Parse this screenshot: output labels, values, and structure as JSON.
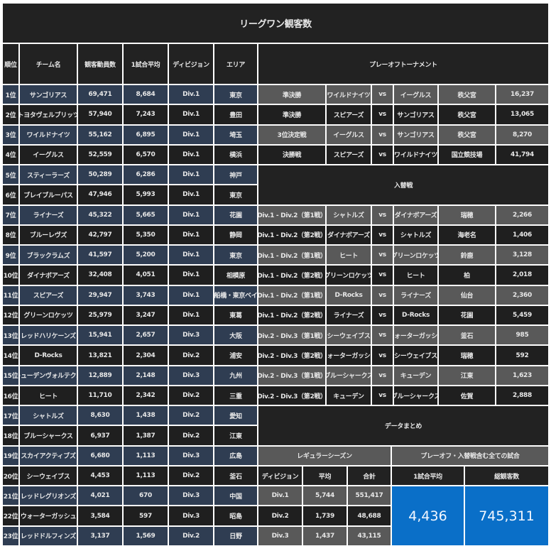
{
  "title": "リーグワン観客数",
  "headers": {
    "rank": "順位",
    "team": "チーム名",
    "attendance": "観客動員数",
    "average": "1試合平均",
    "division": "ディビジョン",
    "area": "エリア",
    "playoff": "プレーオフトーナメント"
  },
  "standings": [
    {
      "rank": "1位",
      "team": "サンゴリアス",
      "attendance": "69,471",
      "average": "8,684",
      "division": "Div.1",
      "area": "東京"
    },
    {
      "rank": "2位",
      "team": "トヨタヴェルブリッツ",
      "attendance": "57,940",
      "average": "7,243",
      "division": "Div.1",
      "area": "豊田"
    },
    {
      "rank": "3位",
      "team": "ワイルドナイツ",
      "attendance": "55,162",
      "average": "6,895",
      "division": "Div.1",
      "area": "埼玉"
    },
    {
      "rank": "4位",
      "team": "イーグルス",
      "attendance": "52,559",
      "average": "6,570",
      "division": "Div.1",
      "area": "横浜"
    },
    {
      "rank": "5位",
      "team": "スティーラーズ",
      "attendance": "50,289",
      "average": "6,286",
      "division": "Div.1",
      "area": "神戸"
    },
    {
      "rank": "6位",
      "team": "ブレイブルーパス",
      "attendance": "47,946",
      "average": "5,993",
      "division": "Div.1",
      "area": "東京"
    },
    {
      "rank": "7位",
      "team": "ライナーズ",
      "attendance": "45,322",
      "average": "5,665",
      "division": "Div.1",
      "area": "花園"
    },
    {
      "rank": "8位",
      "team": "ブルーレヴズ",
      "attendance": "42,797",
      "average": "5,350",
      "division": "Div.1",
      "area": "静岡"
    },
    {
      "rank": "9位",
      "team": "ブラックラムズ",
      "attendance": "41,597",
      "average": "5,200",
      "division": "Div.1",
      "area": "東京"
    },
    {
      "rank": "10位",
      "team": "ダイナボアーズ",
      "attendance": "32,408",
      "average": "4,051",
      "division": "Div.1",
      "area": "相模原"
    },
    {
      "rank": "11位",
      "team": "スピアーズ",
      "attendance": "29,947",
      "average": "3,743",
      "division": "Div.1",
      "area": "船橋・東京ベイ"
    },
    {
      "rank": "12位",
      "team": "グリーンロケッツ",
      "attendance": "25,979",
      "average": "3,247",
      "division": "Div.1",
      "area": "東葛"
    },
    {
      "rank": "13位",
      "team": "レッドハリケーンズ",
      "attendance": "15,941",
      "average": "2,657",
      "division": "Div.3",
      "area": "大阪"
    },
    {
      "rank": "14位",
      "team": "D-Rocks",
      "attendance": "13,821",
      "average": "2,304",
      "division": "Div.2",
      "area": "浦安"
    },
    {
      "rank": "15位",
      "team": "キューデンヴォルテクス",
      "attendance": "12,889",
      "average": "2,148",
      "division": "Div.3",
      "area": "九州"
    },
    {
      "rank": "16位",
      "team": "ヒート",
      "attendance": "11,710",
      "average": "2,342",
      "division": "Div.2",
      "area": "三重"
    },
    {
      "rank": "17位",
      "team": "シャトルズ",
      "attendance": "8,630",
      "average": "1,438",
      "division": "Div.2",
      "area": "愛知"
    },
    {
      "rank": "18位",
      "team": "ブルーシャークス",
      "attendance": "6,937",
      "average": "1,387",
      "division": "Div.2",
      "area": "江東"
    },
    {
      "rank": "19位",
      "team": "スカイアクティブズ",
      "attendance": "6,680",
      "average": "1,113",
      "division": "Div.3",
      "area": "広島"
    },
    {
      "rank": "20位",
      "team": "シーウェイブス",
      "attendance": "4,453",
      "average": "1,113",
      "division": "Div.2",
      "area": "釜石"
    },
    {
      "rank": "21位",
      "team": "レッドレグリオンズ",
      "attendance": "4,021",
      "average": "670",
      "division": "Div.3",
      "area": "中国"
    },
    {
      "rank": "22位",
      "team": "ウォーターガッシュ",
      "attendance": "3,584",
      "average": "597",
      "division": "Div.3",
      "area": "昭島"
    },
    {
      "rank": "23位",
      "team": "レッドドルフィンズ",
      "attendance": "3,137",
      "average": "1,569",
      "division": "Div.2",
      "area": "日野"
    }
  ],
  "playoff_matches": [
    {
      "stage": "準決勝",
      "home": "ワイルドナイツ",
      "vs": "vs",
      "away": "イーグルス",
      "venue": "秩父宮",
      "attendance": "16,237"
    },
    {
      "stage": "準決勝",
      "home": "スピアーズ",
      "vs": "vs",
      "away": "サンゴリアス",
      "venue": "秩父宮",
      "attendance": "13,065"
    },
    {
      "stage": "3位決定戦",
      "home": "イーグルス",
      "vs": "vs",
      "away": "サンゴリアス",
      "venue": "秩父宮",
      "attendance": "8,270"
    },
    {
      "stage": "決勝戦",
      "home": "スピアーズ",
      "vs": "vs",
      "away": "ワイルドナイツ",
      "venue": "国立競技場",
      "attendance": "41,794"
    }
  ],
  "replacement_title": "入替戦",
  "replacement_matches": [
    {
      "stage": "Div.1 - Div.2（第1戦）",
      "home": "シャトルズ",
      "vs": "vs",
      "away": "ダイナボアーズ",
      "venue": "瑞穂",
      "attendance": "2,266"
    },
    {
      "stage": "Div.1 - Div.2（第2戦）",
      "home": "ダイナボアーズ",
      "vs": "vs",
      "away": "シャトルズ",
      "venue": "海老名",
      "attendance": "1,406"
    },
    {
      "stage": "Div.1 - Div.2（第1戦）",
      "home": "ヒート",
      "vs": "vs",
      "away": "グリーンロケッツ",
      "venue": "鈴鹿",
      "attendance": "3,128"
    },
    {
      "stage": "Div.1 - Div.2（第2戦）",
      "home": "グリーンロケッツ",
      "vs": "vs",
      "away": "ヒート",
      "venue": "柏",
      "attendance": "2,018"
    },
    {
      "stage": "Div.1 - Div.2（第1戦）",
      "home": "D-Rocks",
      "vs": "vs",
      "away": "ライナーズ",
      "venue": "仙台",
      "attendance": "2,360"
    },
    {
      "stage": "Div.1 - Div.2（第2戦）",
      "home": "ライナーズ",
      "vs": "vs",
      "away": "D-Rocks",
      "venue": "花園",
      "attendance": "5,459"
    },
    {
      "stage": "Div.2 - Div.3（第1戦）",
      "home": "シーウェイブス",
      "vs": "vs",
      "away": "ウォーターガッシュ",
      "venue": "釜石",
      "attendance": "985"
    },
    {
      "stage": "Div.2 - Div.3（第2戦）",
      "home": "ウォーターガッシュ",
      "vs": "vs",
      "away": "シーウェイブス",
      "venue": "瑞穂",
      "attendance": "592"
    },
    {
      "stage": "Div.2 - Div.3（第1戦）",
      "home": "ブルーシャークス",
      "vs": "vs",
      "away": "キューデン",
      "venue": "江東",
      "attendance": "1,623"
    },
    {
      "stage": "Div.2 - Div.3（第2戦）",
      "home": "キューデン",
      "vs": "vs",
      "away": "ブルーシャークス",
      "venue": "佐賀",
      "attendance": "2,888"
    }
  ],
  "summary": {
    "title": "データまとめ",
    "regular_season_label": "レギュラーシーズン",
    "all_games_label": "プレーオフ・入替戦含む全ての試合",
    "col_division": "ディビジョン",
    "col_average": "平均",
    "col_total": "合計",
    "col_all_average": "1試合平均",
    "col_all_total": "総観客数",
    "divisions": [
      {
        "division": "Div.1",
        "average": "5,744",
        "total": "551,417"
      },
      {
        "division": "Div.2",
        "average": "1,739",
        "total": "48,688"
      },
      {
        "division": "Div.3",
        "average": "1,437",
        "total": "43,115"
      }
    ],
    "all_average": "4,436",
    "all_total": "745,311"
  },
  "colors": {
    "title_bg": "#222222",
    "row_blue": "#2f3d52",
    "row_dark": "#1f1f1f",
    "row_gray": "#595959",
    "highlight_blue": "#0a6fc8"
  }
}
